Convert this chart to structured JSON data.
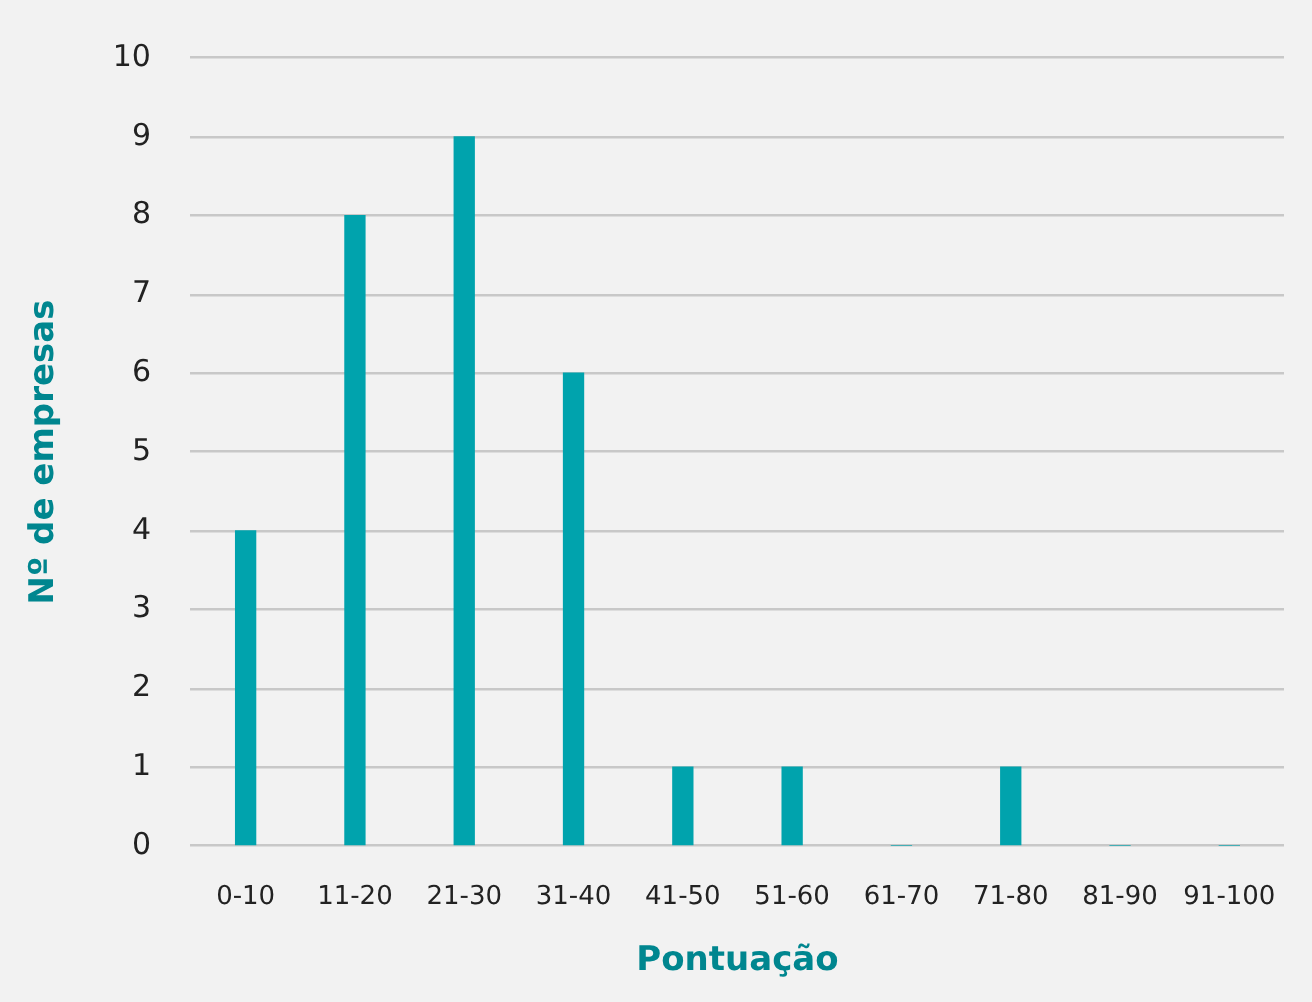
{
  "chart_data": {
    "type": "bar",
    "xlabel": "Pontuação",
    "ylabel": "Nº de empresas",
    "categories": [
      "0-10",
      "11-20",
      "21-30",
      "31-40",
      "41-50",
      "51-60",
      "61-70",
      "71-80",
      "81-90",
      "91-100"
    ],
    "values": [
      4,
      8,
      9,
      6,
      1,
      1,
      0,
      1,
      0,
      0
    ],
    "color": "#00a3ad",
    "ylim": [
      0,
      10
    ],
    "yticks": [
      0,
      1,
      2,
      3,
      4,
      5,
      6,
      7,
      8,
      9,
      10
    ],
    "grid": "y"
  }
}
